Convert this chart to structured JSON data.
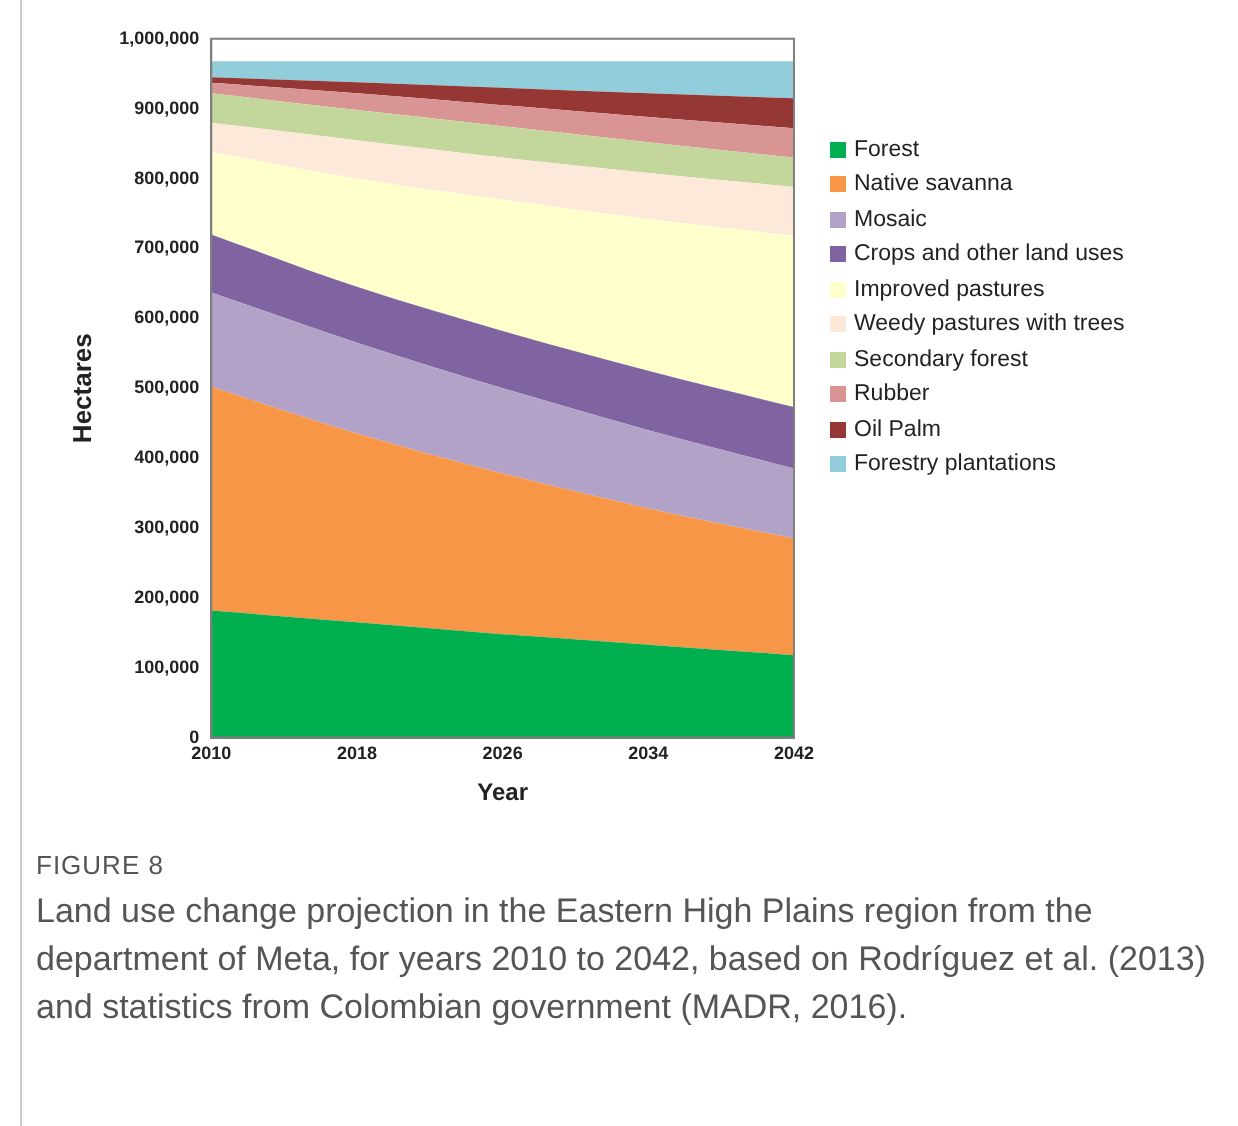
{
  "chart_data": {
    "type": "area",
    "stacked": true,
    "xlabel": "Year",
    "ylabel": "Hectares",
    "x": [
      2010,
      2018,
      2026,
      2034,
      2042
    ],
    "xlim": [
      2010,
      2042
    ],
    "xticks": [
      2010,
      2018,
      2026,
      2034,
      2042
    ],
    "ylim": [
      0,
      1000000
    ],
    "yticks": [
      {
        "value": 0,
        "label": "0"
      },
      {
        "value": 100000,
        "label": "100,000"
      },
      {
        "value": 200000,
        "label": "200,000"
      },
      {
        "value": 300000,
        "label": "300,000"
      },
      {
        "value": 400000,
        "label": "400,000"
      },
      {
        "value": 500000,
        "label": "500,000"
      },
      {
        "value": 600000,
        "label": "600,000"
      },
      {
        "value": 700000,
        "label": "700,000"
      },
      {
        "value": 800000,
        "label": "800,000"
      },
      {
        "value": 900000,
        "label": "900,000"
      },
      {
        "value": 1000000,
        "label": "1,000,000"
      }
    ],
    "grid": false,
    "legend": "right",
    "series": [
      {
        "name": "Forest",
        "color": "#00b050",
        "values": [
          182000,
          165000,
          148000,
          133000,
          118000
        ]
      },
      {
        "name": "Native savanna",
        "color": "#f79646",
        "values": [
          320000,
          270000,
          230000,
          195000,
          167000
        ]
      },
      {
        "name": "Mosaic",
        "color": "#b3a2c7",
        "values": [
          135000,
          130000,
          122000,
          112000,
          100000
        ]
      },
      {
        "name": "Crops and other land uses",
        "color": "#8064a2",
        "values": [
          83000,
          80000,
          82000,
          85000,
          88000
        ]
      },
      {
        "name": "Improved pastures",
        "color": "#ffffcc",
        "values": [
          118000,
          155000,
          188000,
          217000,
          245000
        ]
      },
      {
        "name": "Weedy pastures with trees",
        "color": "#fde9d9",
        "values": [
          42000,
          55000,
          60000,
          66000,
          70000
        ]
      },
      {
        "name": "Secondary forest",
        "color": "#c3d69b",
        "values": [
          42000,
          43000,
          45000,
          44000,
          42000
        ]
      },
      {
        "name": "Rubber",
        "color": "#d99594",
        "values": [
          15000,
          24000,
          30000,
          36000,
          42000
        ]
      },
      {
        "name": "Oil Palm",
        "color": "#953735",
        "values": [
          8000,
          16000,
          25000,
          34000,
          43000
        ]
      },
      {
        "name": "Forestry plantations",
        "color": "#92cddc",
        "values": [
          23000,
          30000,
          38000,
          46000,
          53000
        ]
      }
    ],
    "annotations": [
      "FIGURE 8",
      "Land use change projection in the Eastern High Plains region from the department of Meta, for years 2010 to 2042, based on Rodríguez et al. (2013) and statistics from Colombian government (MADR, 2016)."
    ]
  }
}
